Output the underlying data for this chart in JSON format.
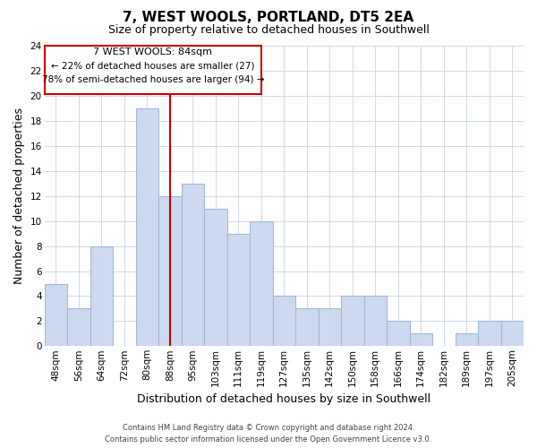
{
  "title": "7, WEST WOOLS, PORTLAND, DT5 2EA",
  "subtitle": "Size of property relative to detached houses in Southwell",
  "xlabel": "Distribution of detached houses by size in Southwell",
  "ylabel": "Number of detached properties",
  "categories": [
    "48sqm",
    "56sqm",
    "64sqm",
    "72sqm",
    "80sqm",
    "88sqm",
    "95sqm",
    "103sqm",
    "111sqm",
    "119sqm",
    "127sqm",
    "135sqm",
    "142sqm",
    "150sqm",
    "158sqm",
    "166sqm",
    "174sqm",
    "182sqm",
    "189sqm",
    "197sqm",
    "205sqm"
  ],
  "values": [
    5,
    3,
    8,
    0,
    19,
    12,
    13,
    11,
    9,
    10,
    4,
    3,
    3,
    4,
    4,
    2,
    1,
    0,
    1,
    2,
    2
  ],
  "bar_color": "#cdd9ee",
  "bar_edge_color": "#a0b8d8",
  "red_line_index": 5,
  "annotation_title": "7 WEST WOOLS: 84sqm",
  "annotation_line1": "← 22% of detached houses are smaller (27)",
  "annotation_line2": "78% of semi-detached houses are larger (94) →",
  "annotation_box_color": "#ffffff",
  "annotation_box_edge": "#cc0000",
  "ylim": [
    0,
    24
  ],
  "yticks": [
    0,
    2,
    4,
    6,
    8,
    10,
    12,
    14,
    16,
    18,
    20,
    22,
    24
  ],
  "footer_line1": "Contains HM Land Registry data © Crown copyright and database right 2024.",
  "footer_line2": "Contains public sector information licensed under the Open Government Licence v3.0.",
  "background_color": "#ffffff",
  "grid_color": "#d0d8e8",
  "title_fontsize": 11,
  "subtitle_fontsize": 9,
  "xlabel_fontsize": 9,
  "ylabel_fontsize": 9,
  "tick_fontsize": 7.5,
  "footer_fontsize": 6,
  "ann_title_fontsize": 8,
  "ann_text_fontsize": 7.5
}
